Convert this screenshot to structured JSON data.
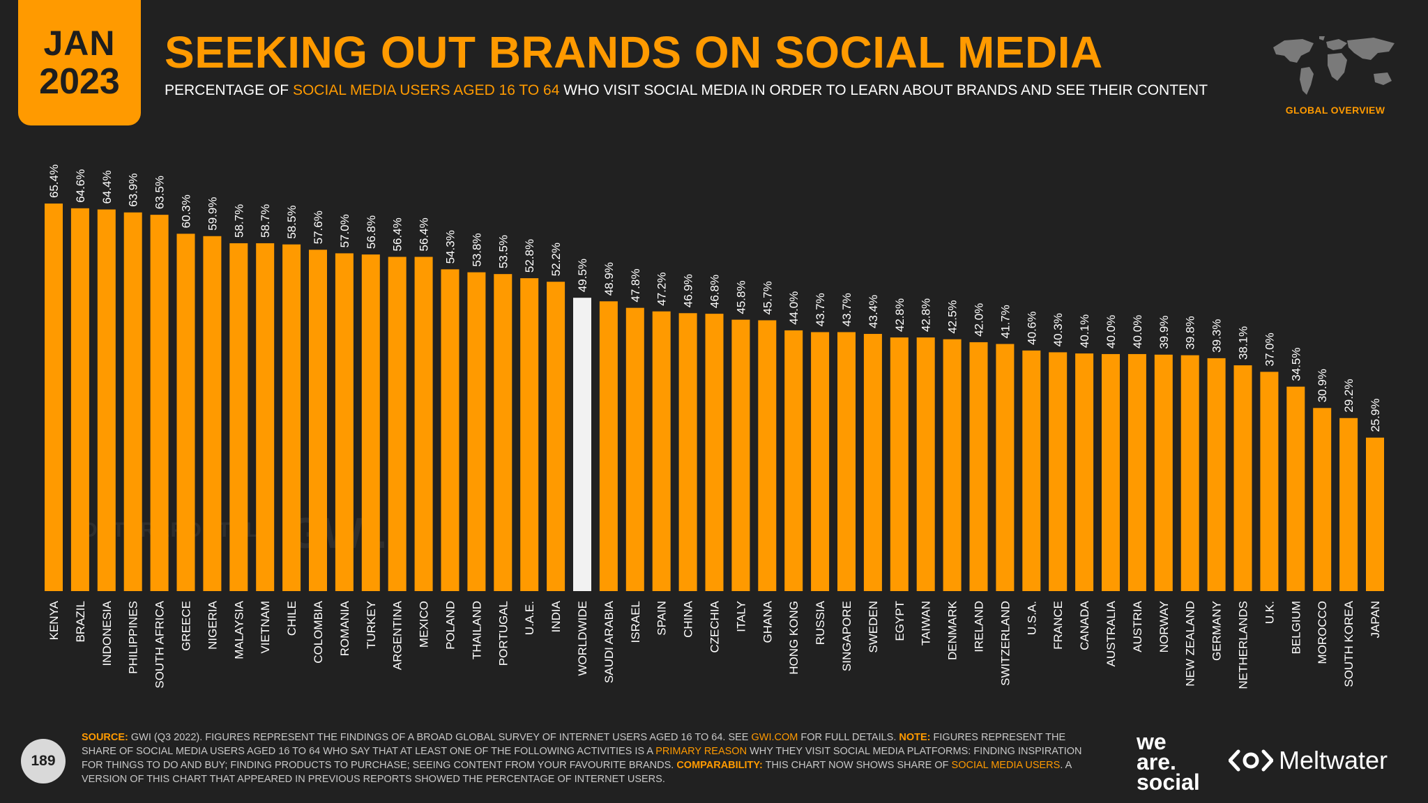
{
  "header": {
    "month": "JAN",
    "year": "2023",
    "title": "SEEKING OUT BRANDS ON SOCIAL MEDIA",
    "subtitle_pre": "PERCENTAGE OF ",
    "subtitle_highlight": "SOCIAL MEDIA USERS AGED 16 TO 64",
    "subtitle_post": " WHO VISIT SOCIAL MEDIA IN ORDER TO LEARN ABOUT BRANDS AND SEE THEIR CONTENT",
    "section": "GLOBAL OVERVIEW"
  },
  "watermarks": {
    "datareportal": "DATAREPORTAL",
    "gwi": "GWI."
  },
  "footer": {
    "page_number": "189",
    "source_label": "SOURCE:",
    "source_text": " GWI (Q3 2022). FIGURES REPRESENT THE FINDINGS OF A BROAD GLOBAL SURVEY OF INTERNET USERS AGED 16 TO 64. SEE ",
    "source_link": "GWI.COM",
    "source_text2": " FOR FULL DETAILS. ",
    "note_label": "NOTE:",
    "note_text": " FIGURES REPRESENT THE SHARE OF SOCIAL MEDIA USERS AGED 16 TO 64 WHO SAY THAT AT LEAST ONE OF THE FOLLOWING ACTIVITIES IS A ",
    "note_highlight": "PRIMARY REASON",
    "note_text2": " WHY THEY VISIT SOCIAL MEDIA PLATFORMS: FINDING INSPIRATION FOR THINGS TO DO AND BUY; FINDING PRODUCTS TO PURCHASE; SEEING CONTENT FROM YOUR FAVOURITE BRANDS. ",
    "comparability_label": "COMPARABILITY:",
    "comparability_text": " THIS CHART NOW SHOWS SHARE OF ",
    "comparability_highlight": "SOCIAL MEDIA USERS",
    "comparability_text2": ". A VERSION OF THIS CHART THAT APPEARED IN PREVIOUS REPORTS SHOWED THE PERCENTAGE OF INTERNET USERS.",
    "brand1_line1": "we",
    "brand1_line2": "are.",
    "brand1_line3": "social",
    "brand2": "Meltwater"
  },
  "colors": {
    "accent": "#ff9a00",
    "highlight_bar": "#f2f2f2",
    "background": "#212121"
  },
  "chart_data": {
    "type": "bar",
    "categories": [
      "KENYA",
      "BRAZIL",
      "INDONESIA",
      "PHILIPPINES",
      "SOUTH AFRICA",
      "GREECE",
      "NIGERIA",
      "MALAYSIA",
      "VIETNAM",
      "CHILE",
      "COLOMBIA",
      "ROMANIA",
      "TURKEY",
      "ARGENTINA",
      "MEXICO",
      "POLAND",
      "THAILAND",
      "PORTUGAL",
      "U.A.E.",
      "INDIA",
      "WORLDWIDE",
      "SAUDI ARABIA",
      "ISRAEL",
      "SPAIN",
      "CHINA",
      "CZECHIA",
      "ITALY",
      "GHANA",
      "HONG KONG",
      "RUSSIA",
      "SINGAPORE",
      "SWEDEN",
      "EGYPT",
      "TAIWAN",
      "DENMARK",
      "IRELAND",
      "SWITZERLAND",
      "U.S.A.",
      "FRANCE",
      "CANADA",
      "AUSTRALIA",
      "AUSTRIA",
      "NORWAY",
      "NEW ZEALAND",
      "GERMANY",
      "NETHERLANDS",
      "U.K.",
      "BELGIUM",
      "MOROCCO",
      "SOUTH KOREA",
      "JAPAN"
    ],
    "values": [
      65.4,
      64.6,
      64.4,
      63.9,
      63.5,
      60.3,
      59.9,
      58.7,
      58.7,
      58.5,
      57.6,
      57.0,
      56.8,
      56.4,
      56.4,
      54.3,
      53.8,
      53.5,
      52.8,
      52.2,
      49.5,
      48.9,
      47.8,
      47.2,
      46.9,
      46.8,
      45.8,
      45.7,
      44.0,
      43.7,
      43.7,
      43.4,
      42.8,
      42.8,
      42.5,
      42.0,
      41.7,
      40.6,
      40.3,
      40.1,
      40.0,
      40.0,
      39.9,
      39.8,
      39.3,
      38.1,
      37.0,
      34.5,
      30.9,
      29.2,
      25.9
    ],
    "labels": [
      "65.4%",
      "64.6%",
      "64.4%",
      "63.9%",
      "63.5%",
      "60.3%",
      "59.9%",
      "58.7%",
      "58.7%",
      "58.5%",
      "57.6%",
      "57.0%",
      "56.8%",
      "56.4%",
      "56.4%",
      "54.3%",
      "53.8%",
      "53.5%",
      "52.8%",
      "52.2%",
      "49.5%",
      "48.9%",
      "47.8%",
      "47.2%",
      "46.9%",
      "46.8%",
      "45.8%",
      "45.7%",
      "44.0%",
      "43.7%",
      "43.7%",
      "43.4%",
      "42.8%",
      "42.8%",
      "42.5%",
      "42.0%",
      "41.7%",
      "40.6%",
      "40.3%",
      "40.1%",
      "40.0%",
      "40.0%",
      "39.9%",
      "39.8%",
      "39.3%",
      "38.1%",
      "37.0%",
      "34.5%",
      "30.9%",
      "29.2%",
      "25.9%"
    ],
    "highlight_category": "WORLDWIDE",
    "ylim": [
      0,
      65.4
    ],
    "grid": false,
    "xlabel": "",
    "ylabel": ""
  }
}
